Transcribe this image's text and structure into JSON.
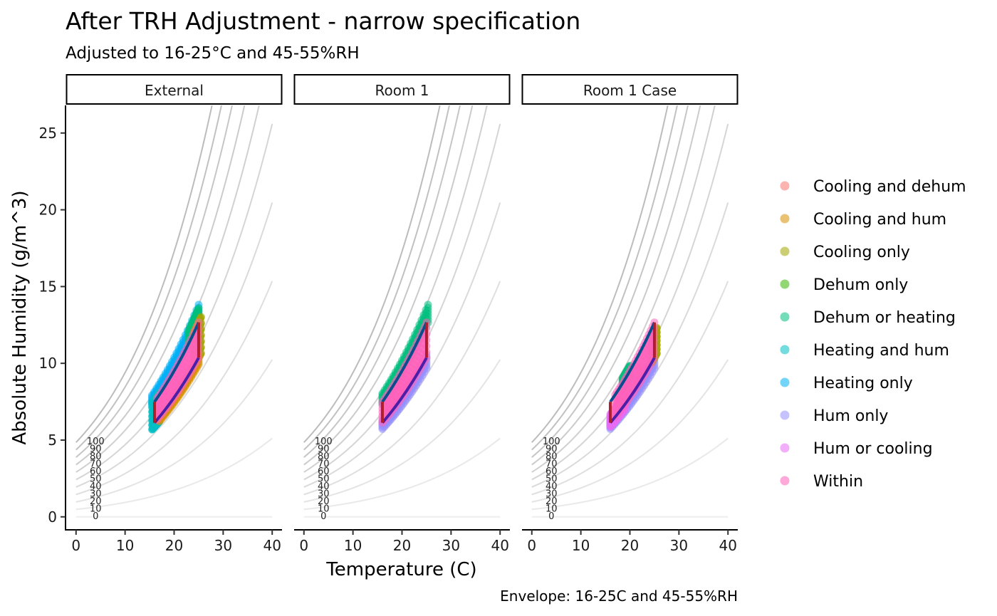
{
  "chart_data": {
    "type": "scatter",
    "title": "After TRH Adjustment - narrow specification",
    "subtitle": "Adjusted to 16-25°C and 45-55%RH",
    "caption": "Envelope: 16-25C and 45-55%RH",
    "xlabel": "Temperature (C)",
    "ylabel": "Absolute Humidity (g/m^3)",
    "xlim": [
      -2,
      42
    ],
    "ylim": [
      -0.8,
      26.8
    ],
    "x_ticks": [
      "0",
      "10",
      "20",
      "30",
      "40"
    ],
    "y_ticks": [
      "0",
      "5",
      "10",
      "15",
      "20",
      "25"
    ],
    "x_tick_values": [
      0,
      10,
      20,
      30,
      40
    ],
    "y_tick_values": [
      0,
      5,
      10,
      15,
      20,
      25
    ],
    "grid": false,
    "rh_curves": [
      "100",
      "90",
      "80",
      "70",
      "60",
      "50",
      "40",
      "30",
      "20",
      "10",
      "0"
    ],
    "envelope": {
      "t_min": 16,
      "t_max": 25,
      "rh_min": 45,
      "rh_max": 55
    },
    "legend": {
      "position": "right",
      "entries": [
        {
          "label": "Cooling and dehum",
          "color": "#F8766D"
        },
        {
          "label": "Cooling and hum",
          "color": "#D89000"
        },
        {
          "label": "Cooling only",
          "color": "#A3A500"
        },
        {
          "label": "Dehum only",
          "color": "#39B600"
        },
        {
          "label": "Dehum or heating",
          "color": "#00BF7D"
        },
        {
          "label": "Heating and hum",
          "color": "#00BFC4"
        },
        {
          "label": "Heating only",
          "color": "#00B0F6"
        },
        {
          "label": "Hum only",
          "color": "#9590FF"
        },
        {
          "label": "Hum or cooling",
          "color": "#E76BF3"
        },
        {
          "label": "Within",
          "color": "#FF62BC"
        }
      ]
    },
    "panels": [
      {
        "label": "External",
        "bands": [
          {
            "category": "Heating only",
            "t0": 15.5,
            "t1": 25,
            "rh0": 55,
            "rh1": 60
          },
          {
            "category": "Heating and hum",
            "t0": 15.5,
            "t1": 17,
            "rh0": 43,
            "rh1": 56
          },
          {
            "category": "Dehum or heating",
            "t0": 23,
            "t1": 25,
            "rh0": 54,
            "rh1": 59
          },
          {
            "category": "Cooling only",
            "t0": 24,
            "t1": 25.5,
            "rh0": 45,
            "rh1": 55
          },
          {
            "category": "Cooling and hum",
            "t0": 17,
            "t1": 25,
            "rh0": 43,
            "rh1": 46
          },
          {
            "category": "Within",
            "t0": 16.5,
            "t1": 25,
            "rh0": 45,
            "rh1": 55
          }
        ]
      },
      {
        "label": "Room 1",
        "bands": [
          {
            "category": "Dehum or heating",
            "t0": 16,
            "t1": 25.3,
            "rh0": 54,
            "rh1": 59
          },
          {
            "category": "Hum only",
            "t0": 16,
            "t1": 25,
            "rh0": 42,
            "rh1": 46
          },
          {
            "category": "Within",
            "t0": 16,
            "t1": 25,
            "rh0": 45,
            "rh1": 55
          }
        ]
      },
      {
        "label": "Room 1 Case",
        "bands": [
          {
            "category": "Dehum or heating",
            "t0": 18.5,
            "t1": 20,
            "rh0": 53,
            "rh1": 57
          },
          {
            "category": "Hum only",
            "t0": 16,
            "t1": 25,
            "rh0": 42,
            "rh1": 46
          },
          {
            "category": "Cooling only",
            "t0": 24.5,
            "t1": 25.5,
            "rh0": 45,
            "rh1": 52
          },
          {
            "category": "Hum or cooling",
            "t0": 16,
            "t1": 19,
            "rh0": 43,
            "rh1": 49
          },
          {
            "category": "Within",
            "t0": 17,
            "t1": 25,
            "rh0": 45,
            "rh1": 55
          }
        ]
      }
    ]
  }
}
